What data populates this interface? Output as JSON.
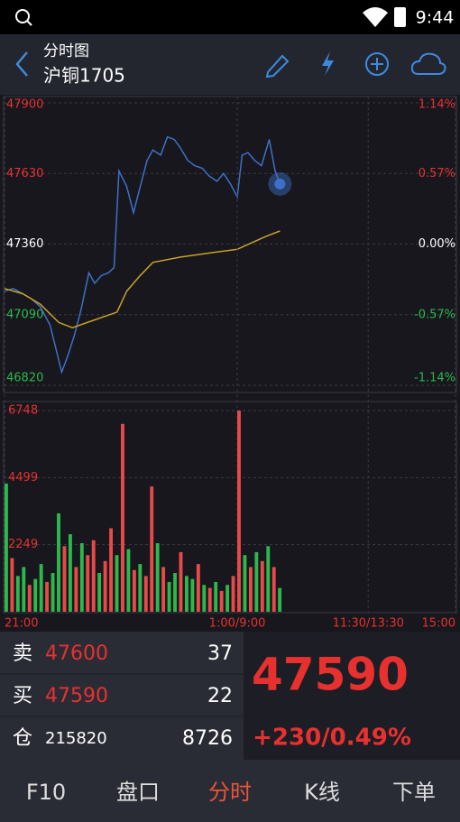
{
  "status_bar": {
    "time": "9:44"
  },
  "header": {
    "title": "分时图",
    "subtitle": "沪铜1705"
  },
  "chart_data": [
    {
      "type": "line",
      "ylim": [
        46820,
        47900
      ],
      "yticks": [
        47900,
        47630,
        47360,
        47090,
        46820
      ],
      "y2lim": [
        -1.14,
        1.14
      ],
      "y2ticks": [
        {
          "value": 1.14,
          "label": "1.14%"
        },
        {
          "value": 0.57,
          "label": "0.57%"
        },
        {
          "value": 0,
          "label": "0.00%"
        },
        {
          "value": -0.57,
          "label": "-0.57%"
        },
        {
          "value": -1.14,
          "label": "-1.14%"
        }
      ],
      "xlim": [
        0,
        465
      ],
      "grid": true,
      "series": [
        {
          "color": "#3f70c8",
          "x": [
            0,
            9,
            19,
            28,
            37,
            47,
            53,
            59,
            65,
            72,
            79,
            87,
            93,
            100,
            107,
            113,
            118,
            126,
            133,
            140,
            147,
            153,
            161,
            168,
            175,
            181,
            189,
            196,
            204,
            211,
            219,
            226,
            233,
            240,
            245,
            251,
            258,
            265,
            273,
            279,
            284
          ],
          "values": [
            47180,
            47190,
            47170,
            47150,
            47120,
            47050,
            46960,
            46870,
            46930,
            47010,
            47110,
            47250,
            47210,
            47240,
            47250,
            47270,
            47640,
            47580,
            47480,
            47580,
            47680,
            47720,
            47700,
            47770,
            47760,
            47730,
            47680,
            47660,
            47650,
            47620,
            47600,
            47630,
            47590,
            47540,
            47700,
            47710,
            47680,
            47660,
            47760,
            47640,
            47590
          ]
        },
        {
          "color": "#c9a227",
          "x": [
            0,
            19,
            37,
            56,
            70,
            93,
            116,
            126,
            140,
            153,
            181,
            219,
            240,
            258,
            270,
            284
          ],
          "values": [
            47190,
            47170,
            47130,
            47060,
            47040,
            47070,
            47100,
            47180,
            47240,
            47290,
            47310,
            47330,
            47340,
            47370,
            47390,
            47410
          ]
        }
      ]
    },
    {
      "type": "bar",
      "ylim": [
        0,
        6748
      ],
      "yticks": [
        6748,
        4499,
        2249
      ],
      "xlim": [
        0,
        465
      ],
      "xticks": [
        {
          "value": 0,
          "label": "21:00"
        },
        {
          "value": 240,
          "label": "1:00/9:00"
        },
        {
          "value": 375,
          "label": "11:30/13:30"
        },
        {
          "value": 465,
          "label": "15:00"
        }
      ],
      "x": [
        0,
        6,
        12,
        18,
        24,
        30,
        36,
        42,
        48,
        54,
        60,
        66,
        72,
        78,
        84,
        90,
        96,
        102,
        108,
        114,
        120,
        126,
        132,
        138,
        144,
        150,
        156,
        162,
        168,
        174,
        180,
        186,
        192,
        198,
        204,
        210,
        216,
        222,
        228,
        234,
        240,
        246,
        252,
        258,
        264,
        270,
        276,
        282
      ],
      "values": [
        4300,
        1800,
        1200,
        1500,
        900,
        1100,
        1600,
        1000,
        1300,
        3300,
        2200,
        2600,
        1500,
        2300,
        1900,
        2400,
        1300,
        1700,
        2800,
        1900,
        6300,
        2100,
        1400,
        1600,
        1200,
        4200,
        2300,
        1500,
        1000,
        1300,
        2000,
        1200,
        1100,
        1600,
        900,
        800,
        1000,
        700,
        900,
        1200,
        6748,
        1900,
        1500,
        2000,
        1700,
        2200,
        1500,
        800
      ],
      "colors": [
        "#2db84d",
        "#e84a4a",
        "#2db84d",
        "#2db84d",
        "#e84a4a",
        "#2db84d",
        "#2db84d",
        "#e84a4a",
        "#2db84d",
        "#2db84d",
        "#e84a4a",
        "#2db84d",
        "#e84a4a",
        "#2db84d",
        "#e84a4a",
        "#e84a4a",
        "#2db84d",
        "#e84a4a",
        "#e84a4a",
        "#2db84d",
        "#e84a4a",
        "#2db84d",
        "#e84a4a",
        "#2db84d",
        "#e84a4a",
        "#e84a4a",
        "#2db84d",
        "#e84a4a",
        "#2db84d",
        "#2db84d",
        "#e84a4a",
        "#2db84d",
        "#2db84d",
        "#e84a4a",
        "#2db84d",
        "#e84a4a",
        "#2db84d",
        "#e84a4a",
        "#2db84d",
        "#e84a4a",
        "#e84a4a",
        "#2db84d",
        "#e84a4a",
        "#2db84d",
        "#e84a4a",
        "#2db84d",
        "#e84a4a",
        "#2db84d"
      ]
    }
  ],
  "quote": {
    "sell_label": "卖",
    "sell_price": "47600",
    "sell_volume": "37",
    "buy_label": "买",
    "buy_price": "47590",
    "buy_volume": "22",
    "position_label": "仓",
    "position": "215820",
    "position_change": "8726",
    "last_price": "47590",
    "change": "+230/0.49%"
  },
  "tabs": [
    "F10",
    "盘口",
    "分时",
    "K线",
    "下单"
  ]
}
